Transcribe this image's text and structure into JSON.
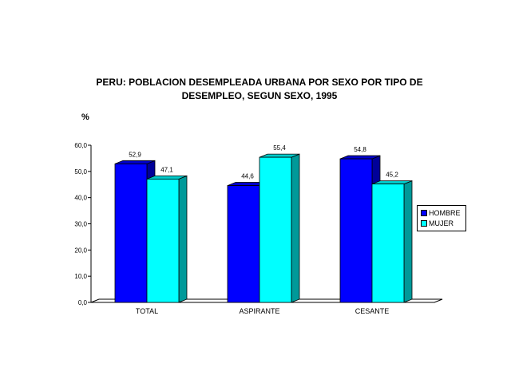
{
  "chart_data": {
    "type": "bar",
    "title_lines": [
      "PERU: POBLACION DESEMPLEADA URBANA POR SEXO POR TIPO DE",
      "DESEMPLEO, SEGUN SEXO, 1995"
    ],
    "ylabel": "%",
    "xlabel": "",
    "categories": [
      "TOTAL",
      "ASPIRANTE",
      "CESANTE"
    ],
    "series": [
      {
        "name": "HOMBRE",
        "values": [
          52.9,
          44.6,
          54.8
        ],
        "labels": [
          "52,9",
          "44,6",
          "54,8"
        ],
        "color": "#0000ff"
      },
      {
        "name": "MUJER",
        "values": [
          47.1,
          55.4,
          45.2
        ],
        "labels": [
          "47,1",
          "55,4",
          "45,2"
        ],
        "color": "#00ffff"
      }
    ],
    "ylim": [
      0,
      60
    ],
    "yticks": [
      0,
      10,
      20,
      30,
      40,
      50,
      60
    ],
    "ytick_labels": [
      "0,0",
      "10,0",
      "20,0",
      "30,0",
      "40,0",
      "50,0",
      "60,0"
    ],
    "grid": false,
    "legend_position": "right",
    "style": "3d"
  }
}
